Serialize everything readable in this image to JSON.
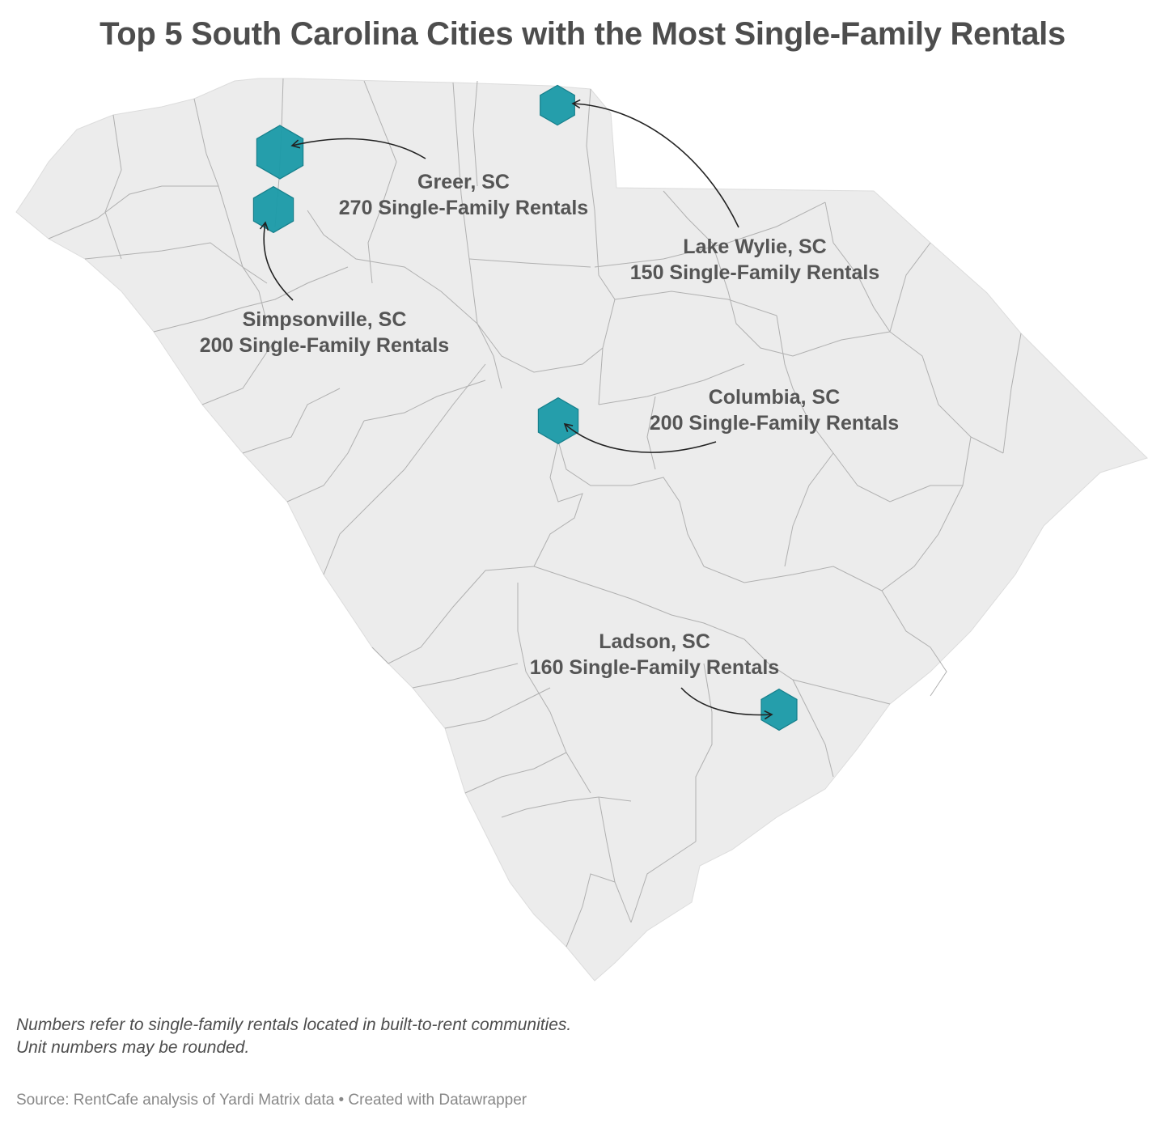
{
  "title": "Top 5 South Carolina Cities with the Most Single-Family Rentals",
  "colors": {
    "state_fill": "#ececec",
    "county_border": "#b0b0b0",
    "marker_fill": "#1a9aa8",
    "marker_stroke": "#167f8b",
    "label_text": "#555555",
    "arrow": "#222222"
  },
  "icons": {
    "marker": "hexagon-icon"
  },
  "cities": [
    {
      "name": "Greer, SC",
      "value": 270,
      "value_label": "270 Single-Family Rentals"
    },
    {
      "name": "Simpsonville, SC",
      "value": 200,
      "value_label": "200 Single-Family Rentals"
    },
    {
      "name": "Lake Wylie, SC",
      "value": 150,
      "value_label": "150 Single-Family Rentals"
    },
    {
      "name": "Columbia, SC",
      "value": 200,
      "value_label": "200 Single-Family Rentals"
    },
    {
      "name": "Ladson, SC",
      "value": 160,
      "value_label": "160 Single-Family Rentals"
    }
  ],
  "notes": {
    "line1": "Numbers refer to single-family rentals located in built-to-rent communities.",
    "line2": "Unit numbers may be rounded."
  },
  "source": "Source: RentCafe analysis of Yardi Matrix data • Created with Datawrapper"
}
